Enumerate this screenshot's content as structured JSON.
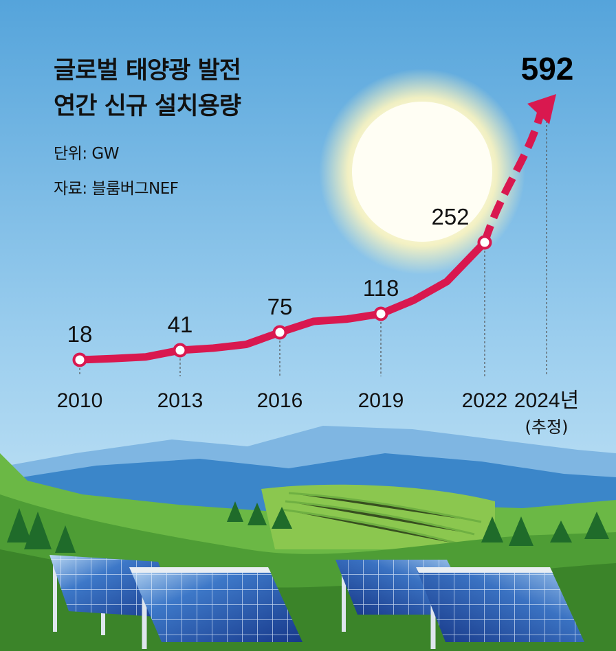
{
  "title_line1": "글로벌 태양광 발전",
  "title_line2": "연간 신규 설치용량",
  "unit": "단위: GW",
  "source": "자료: 블룸버그NEF",
  "colors": {
    "line": "#d9184f",
    "sky_top": "#5aa7dc",
    "sky_bottom": "#c9e6f6"
  },
  "chart_data": {
    "type": "line",
    "title": "글로벌 태양광 발전 연간 신규 설치용량",
    "unit": "GW",
    "x_labels": [
      "2010",
      "2013",
      "2016",
      "2019",
      "2022",
      "2024년"
    ],
    "x_sub_labels": [
      "",
      "",
      "",
      "",
      "",
      "(추정)"
    ],
    "series": [
      {
        "years": [
          2010,
          2011,
          2012,
          2013,
          2014,
          2015,
          2016,
          2017,
          2018,
          2019,
          2020,
          2021,
          2022
        ],
        "values": [
          18,
          21,
          25,
          41,
          45,
          52,
          75,
          92,
          100,
          118,
          140,
          170,
          252
        ]
      }
    ],
    "labeled_points": [
      {
        "year": "2010",
        "value": 18
      },
      {
        "year": "2013",
        "value": 41
      },
      {
        "year": "2016",
        "value": 75
      },
      {
        "year": "2019",
        "value": 118
      },
      {
        "year": "2022",
        "value": 252
      }
    ],
    "projection": {
      "from_year": "2022",
      "from_value": 252,
      "to_year": "2024년",
      "to_value": 592,
      "label": "592"
    }
  }
}
